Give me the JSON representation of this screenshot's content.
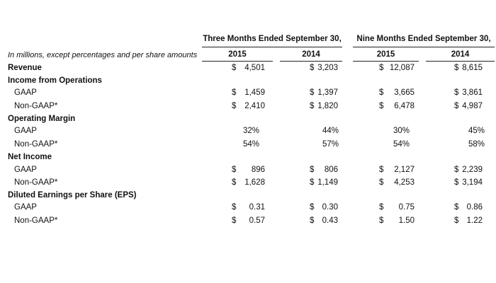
{
  "header": {
    "group_three_months": "Three Months Ended September 30,",
    "group_nine_months": "Nine Months Ended September 30,",
    "caption": "In millions, except percentages and per share amounts",
    "years": [
      "2015",
      "2014",
      "2015",
      "2014"
    ]
  },
  "rows": {
    "revenue": {
      "label": "Revenue",
      "values": [
        {
          "cur": "$",
          "num": "4,501"
        },
        {
          "cur": "$",
          "num": "3,203"
        },
        {
          "cur": "$",
          "num": "12,087"
        },
        {
          "cur": "$",
          "num": "8,615"
        }
      ]
    },
    "income_ops": {
      "label": "Income from Operations"
    },
    "income_ops_gaap": {
      "label": "GAAP",
      "values": [
        {
          "cur": "$",
          "num": "1,459"
        },
        {
          "cur": "$",
          "num": "1,397"
        },
        {
          "cur": "$",
          "num": "3,665"
        },
        {
          "cur": "$",
          "num": "3,861"
        }
      ]
    },
    "income_ops_nongaap": {
      "label": "Non-GAAP*",
      "values": [
        {
          "cur": "$",
          "num": "2,410"
        },
        {
          "cur": "$",
          "num": "1,820"
        },
        {
          "cur": "$",
          "num": "6,478"
        },
        {
          "cur": "$",
          "num": "4,987"
        }
      ]
    },
    "op_margin": {
      "label": "Operating Margin"
    },
    "op_margin_gaap": {
      "label": "GAAP",
      "values": [
        {
          "cur": "",
          "num": "32%"
        },
        {
          "cur": "",
          "num": "44%"
        },
        {
          "cur": "",
          "num": "30%"
        },
        {
          "cur": "",
          "num": "45%"
        }
      ]
    },
    "op_margin_nongaap": {
      "label": "Non-GAAP*",
      "values": [
        {
          "cur": "",
          "num": "54%"
        },
        {
          "cur": "",
          "num": "57%"
        },
        {
          "cur": "",
          "num": "54%"
        },
        {
          "cur": "",
          "num": "58%"
        }
      ]
    },
    "net_income": {
      "label": "Net Income"
    },
    "net_income_gaap": {
      "label": "GAAP",
      "values": [
        {
          "cur": "$",
          "num": "896"
        },
        {
          "cur": "$",
          "num": "806"
        },
        {
          "cur": "$",
          "num": "2,127"
        },
        {
          "cur": "$",
          "num": "2,239"
        }
      ]
    },
    "net_income_nongaap": {
      "label": "Non-GAAP*",
      "values": [
        {
          "cur": "$",
          "num": "1,628"
        },
        {
          "cur": "$",
          "num": "1,149"
        },
        {
          "cur": "$",
          "num": "4,253"
        },
        {
          "cur": "$",
          "num": "3,194"
        }
      ]
    },
    "eps": {
      "label": "Diluted Earnings per Share (EPS)"
    },
    "eps_gaap": {
      "label": "GAAP",
      "values": [
        {
          "cur": "$",
          "num": "0.31"
        },
        {
          "cur": "$",
          "num": "0.30"
        },
        {
          "cur": "$",
          "num": "0.75"
        },
        {
          "cur": "$",
          "num": "0.86"
        }
      ]
    },
    "eps_nongaap": {
      "label": "Non-GAAP*",
      "values": [
        {
          "cur": "$",
          "num": "0.57"
        },
        {
          "cur": "$",
          "num": "0.43"
        },
        {
          "cur": "$",
          "num": "1.50"
        },
        {
          "cur": "$",
          "num": "1.22"
        }
      ]
    }
  }
}
